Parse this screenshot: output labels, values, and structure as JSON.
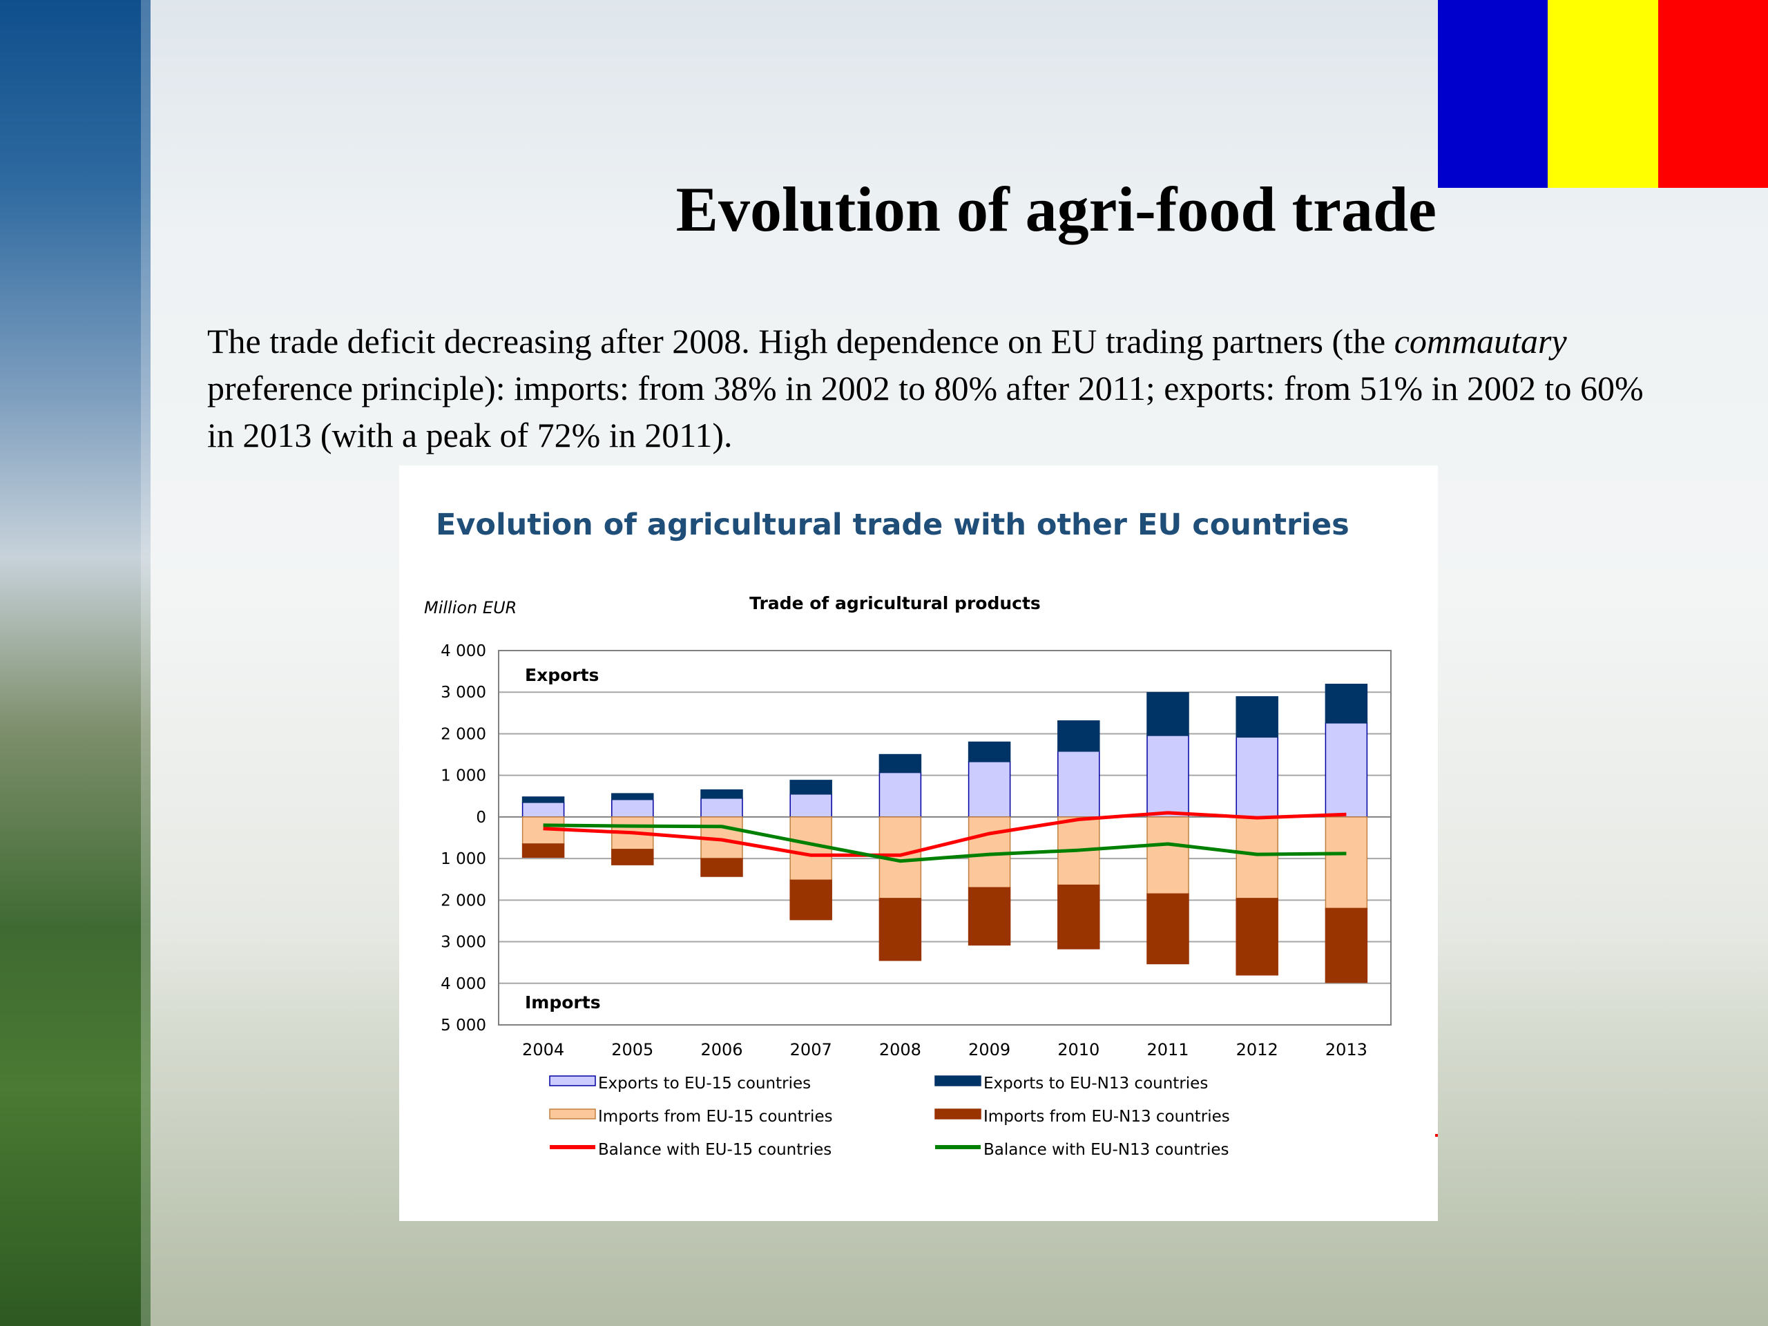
{
  "slide": {
    "title": "Evolution of agri-food trade",
    "paragraph": {
      "part1": "The trade deficit decreasing after 2008. High dependence on EU trading partners (the ",
      "italic": "commautary",
      "part2": " preference principle): imports: from 38% in 2002 to 80% after 2011; exports: from 51% in 2002 to 60% in 2013 (with a peak of 72% in 2011)."
    }
  },
  "colors": {
    "flag": [
      "#0000cc",
      "#ffff00",
      "#ff0000"
    ],
    "panel_title": "#1f4e79",
    "exports_eu15": "#ccccff",
    "exports_eun13": "#003366",
    "imports_eu15": "#fcc79b",
    "imports_eun13": "#993300",
    "balance_eu15": "#ff0000",
    "balance_eun13": "#008000"
  },
  "chart_data": {
    "type": "bar",
    "panel_title": "Evolution of agricultural trade with other EU countries",
    "title": "Trade of agricultural products",
    "ylabel": "Million EUR",
    "top_label": "Exports",
    "bottom_label": "Imports",
    "ylim": [
      -5000,
      4000
    ],
    "yticks": [
      {
        "value": 4000,
        "label": "4 000"
      },
      {
        "value": 3000,
        "label": "3 000"
      },
      {
        "value": 2000,
        "label": "2 000"
      },
      {
        "value": 1000,
        "label": "1 000"
      },
      {
        "value": 0,
        "label": "0"
      },
      {
        "value": -1000,
        "label": "1 000"
      },
      {
        "value": -2000,
        "label": "2 000"
      },
      {
        "value": -3000,
        "label": "3 000"
      },
      {
        "value": -4000,
        "label": "4 000"
      },
      {
        "value": -5000,
        "label": "5 000"
      }
    ],
    "categories": [
      "2004",
      "2005",
      "2006",
      "2007",
      "2008",
      "2009",
      "2010",
      "2011",
      "2012",
      "2013"
    ],
    "grid": true,
    "legend_position": "bottom",
    "series": [
      {
        "name": "Exports to EU-15 countries",
        "type": "bar",
        "stack": "exports",
        "values": [
          350,
          420,
          450,
          550,
          1070,
          1330,
          1580,
          1960,
          1920,
          2260
        ]
      },
      {
        "name": "Exports to EU-N13 countries",
        "type": "bar",
        "stack": "exports",
        "values": [
          130,
          140,
          200,
          330,
          430,
          470,
          730,
          1030,
          970,
          930
        ]
      },
      {
        "name": "Imports from EU-15 countries",
        "type": "bar",
        "stack": "imports",
        "values": [
          -650,
          -780,
          -1000,
          -1520,
          -1960,
          -1700,
          -1640,
          -1850,
          -1960,
          -2200
        ]
      },
      {
        "name": "Imports from EU-N13 countries",
        "type": "bar",
        "stack": "imports",
        "values": [
          -320,
          -370,
          -430,
          -950,
          -1490,
          -1380,
          -1530,
          -1680,
          -1840,
          -1780
        ]
      },
      {
        "name": "Balance with EU-15 countries",
        "type": "line",
        "values": [
          -280,
          -380,
          -550,
          -920,
          -920,
          -400,
          -60,
          100,
          -20,
          60
        ]
      },
      {
        "name": "Balance with EU-N13 countries",
        "type": "line",
        "values": [
          -200,
          -220,
          -230,
          -650,
          -1060,
          -900,
          -800,
          -650,
          -900,
          -880
        ]
      }
    ]
  }
}
